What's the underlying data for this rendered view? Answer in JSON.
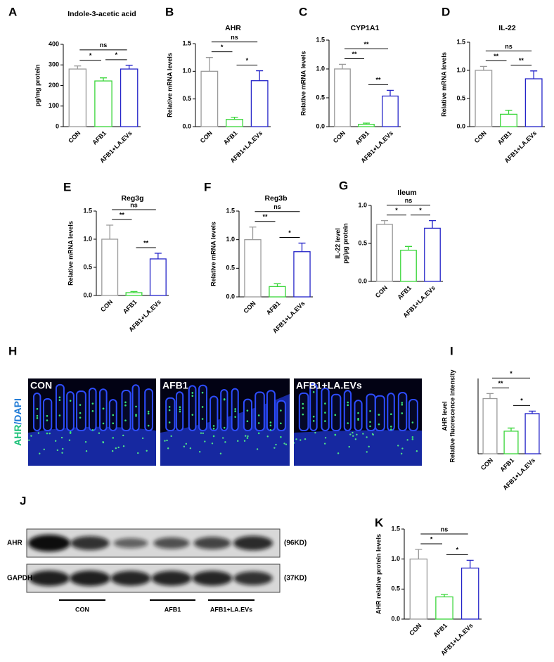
{
  "chart_data": [
    {
      "type": "bar",
      "panel": "A",
      "title": "Indole-3-acetic acid",
      "y_label": [
        "pg/mg protein"
      ],
      "categories": [
        "CON",
        "AFB1",
        "AFB1+LA.EVs"
      ],
      "values": [
        280,
        222,
        280
      ],
      "errors": [
        15,
        15,
        18
      ],
      "colors": [
        "#9a9a9a",
        "#39d639",
        "#2424c8"
      ],
      "ylim": [
        0,
        400
      ],
      "yticks": [
        0,
        100,
        200,
        300,
        400
      ],
      "annotations": [
        "*",
        "*",
        "ns"
      ]
    },
    {
      "type": "bar",
      "panel": "B",
      "title": "AHR",
      "y_label": [
        "Relative mRNA levels"
      ],
      "categories": [
        "CON",
        "AFB1",
        "AFB1+LA.EVs"
      ],
      "values": [
        1.0,
        0.13,
        0.83
      ],
      "errors": [
        0.25,
        0.04,
        0.18
      ],
      "colors": [
        "#9a9a9a",
        "#39d639",
        "#2424c8"
      ],
      "ylim": [
        0,
        1.5
      ],
      "yticks": [
        {
          "value": 0,
          "label": "0.0"
        },
        {
          "value": 0.5,
          "label": "0.5"
        },
        {
          "value": 1,
          "label": "1.0"
        },
        {
          "value": 1.5,
          "label": "1.5"
        }
      ],
      "annotations": [
        "*",
        "*",
        "ns"
      ]
    },
    {
      "type": "bar",
      "panel": "C",
      "title": "CYP1A1",
      "y_label": [
        "Relative  mRNA levels"
      ],
      "categories": [
        "CON",
        "AFB1",
        "AFB1+LA.EVs"
      ],
      "values": [
        1.0,
        0.04,
        0.53
      ],
      "errors": [
        0.08,
        0.02,
        0.1
      ],
      "colors": [
        "#9a9a9a",
        "#39d639",
        "#2424c8"
      ],
      "ylim": [
        0,
        1.5
      ],
      "yticks": [
        {
          "value": 0,
          "label": "0.0"
        },
        {
          "value": 0.5,
          "label": "0.5"
        },
        {
          "value": 1,
          "label": "1.0"
        },
        {
          "value": 1.5,
          "label": "1.5"
        }
      ],
      "annotations": [
        "**",
        "**",
        "**"
      ]
    },
    {
      "type": "bar",
      "panel": "D",
      "title": "IL-22",
      "y_label": [
        "Relative  mRNA levels"
      ],
      "categories": [
        "CON",
        "AFB1",
        "AFB1+LA.EVs"
      ],
      "values": [
        1.0,
        0.22,
        0.85
      ],
      "errors": [
        0.07,
        0.07,
        0.14
      ],
      "colors": [
        "#9a9a9a",
        "#39d639",
        "#2424c8"
      ],
      "ylim": [
        0,
        1.5
      ],
      "yticks": [
        {
          "value": 0,
          "label": "0.0"
        },
        {
          "value": 0.5,
          "label": "0.5"
        },
        {
          "value": 1,
          "label": "1.0"
        },
        {
          "value": 1.5,
          "label": "1.5"
        }
      ],
      "annotations": [
        "**",
        "**",
        "ns"
      ]
    },
    {
      "type": "bar",
      "panel": "E",
      "title": "Reg3g",
      "y_label": [
        "Relative  mRNA levels"
      ],
      "categories": [
        "CON",
        "AFB1",
        "AFB1+LA.EVs"
      ],
      "values": [
        1.0,
        0.05,
        0.65
      ],
      "errors": [
        0.25,
        0.02,
        0.1
      ],
      "colors": [
        "#9a9a9a",
        "#39d639",
        "#2424c8"
      ],
      "ylim": [
        0,
        1.5
      ],
      "yticks": [
        {
          "value": 0,
          "label": "0.0"
        },
        {
          "value": 0.5,
          "label": "0.5"
        },
        {
          "value": 1,
          "label": "1.0"
        },
        {
          "value": 1.5,
          "label": "1.5"
        }
      ],
      "annotations": [
        "**",
        "**",
        "ns"
      ]
    },
    {
      "type": "bar",
      "panel": "F",
      "title": "Reg3b",
      "y_label": [
        "Relative  mRNA levels"
      ],
      "categories": [
        "CON",
        "AFB1",
        "AFB1+LA.EVs"
      ],
      "values": [
        1.0,
        0.18,
        0.79
      ],
      "errors": [
        0.22,
        0.05,
        0.15
      ],
      "colors": [
        "#9a9a9a",
        "#39d639",
        "#2424c8"
      ],
      "ylim": [
        0,
        1.5
      ],
      "yticks": [
        {
          "value": 0,
          "label": "0.0"
        },
        {
          "value": 0.5,
          "label": "0.5"
        },
        {
          "value": 1,
          "label": "1.0"
        },
        {
          "value": 1.5,
          "label": "1.5"
        }
      ],
      "annotations": [
        "**",
        "*",
        "ns"
      ]
    },
    {
      "type": "bar",
      "panel": "G",
      "title": "Ileum",
      "y_label": [
        "IL-22 level",
        "pg/μg protein"
      ],
      "categories": [
        "CON",
        "AFB1",
        "AFB1+LA.EVs"
      ],
      "values": [
        0.75,
        0.41,
        0.7
      ],
      "errors": [
        0.05,
        0.05,
        0.1
      ],
      "colors": [
        "#9a9a9a",
        "#39d639",
        "#2424c8"
      ],
      "ylim": [
        0,
        1.0
      ],
      "yticks": [
        {
          "value": 0,
          "label": "0.0"
        },
        {
          "value": 0.5,
          "label": "0.5"
        },
        {
          "value": 1,
          "label": "1.0"
        }
      ],
      "annotations": [
        "*",
        "*",
        "ns"
      ]
    },
    {
      "type": "bar",
      "panel": "I",
      "y_label": [
        "AHR level",
        "Relative fluorescence intensity"
      ],
      "categories": [
        "CON",
        "AFB1",
        "AFB1+LA.EVs"
      ],
      "values": [
        88,
        36,
        64
      ],
      "errors": [
        8,
        5,
        4
      ],
      "colors": [
        "#9a9a9a",
        "#39d639",
        "#2424c8"
      ],
      "ylim": [
        0,
        120
      ],
      "yticks": [],
      "annotations": [
        "**",
        "*",
        "*"
      ]
    },
    {
      "type": "bar",
      "panel": "K",
      "y_label": [
        "AHR relative protein levels"
      ],
      "categories": [
        "CON",
        "AFB1",
        "AFB1+LA.EVs"
      ],
      "values": [
        1.0,
        0.37,
        0.85
      ],
      "errors": [
        0.16,
        0.04,
        0.13
      ],
      "colors": [
        "#9a9a9a",
        "#39d639",
        "#2424c8"
      ],
      "ylim": [
        0,
        1.5
      ],
      "yticks": [
        {
          "value": 0,
          "label": "0.0"
        },
        {
          "value": 0.5,
          "label": "0.5"
        },
        {
          "value": 1,
          "label": "1.0"
        },
        {
          "value": 1.5,
          "label": "1.5"
        }
      ],
      "annotations": [
        "*",
        "*",
        "ns"
      ]
    }
  ],
  "panel_h": {
    "label": "H",
    "stain": [
      "AHR",
      "/DAPI"
    ],
    "images": [
      "CON",
      "AFB1",
      "AFB1+LA.EVs"
    ]
  },
  "panel_j": {
    "label": "J",
    "proteins": [
      {
        "name": "AHR",
        "size": "(96KD)"
      },
      {
        "name": "GAPDH",
        "size": "(37KD)"
      }
    ],
    "groups": [
      "CON",
      "AFB1",
      "AFB1+LA.EVs"
    ]
  }
}
